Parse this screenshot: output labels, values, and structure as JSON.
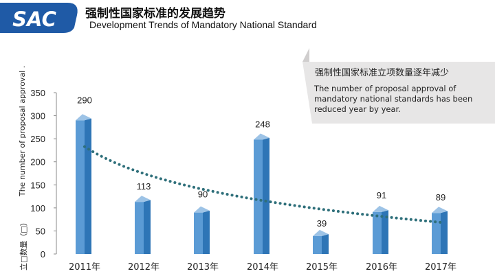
{
  "header": {
    "logo_text": "SAC",
    "title_cn": "强制性国家标准的发展趋势",
    "title_en": "Development Trends of Mandatory National Standard"
  },
  "callout": {
    "text_cn": "强制性国家标准立项数量逐年减少",
    "text_en": "The number of proposal approval of mandatory national standards has been reduced year by year."
  },
  "colors": {
    "logo_blue": "#1f5aa6",
    "bar_front": "#5b9bd5",
    "bar_side": "#2e75b6",
    "bar_top": "#9dc3e6",
    "trendline": "#2e6f7a"
  },
  "chart_data": {
    "type": "bar",
    "categories": [
      "2011年",
      "2012年",
      "2013年",
      "2014年",
      "2015年",
      "2016年",
      "2017年"
    ],
    "values": [
      290,
      113,
      90,
      248,
      39,
      91,
      89
    ],
    "data_labels": [
      "290",
      "113",
      "90",
      "248",
      "39",
      "91",
      "89"
    ],
    "ylabel_en": "The number of proposal approval .",
    "ylabel_cn": "立□数量（□）",
    "ylim": [
      0,
      350
    ],
    "yticks": [
      0,
      50,
      100,
      150,
      200,
      250,
      300,
      350
    ],
    "trendline": {
      "style": "dotted",
      "kind": "logarithmic"
    },
    "grid": false,
    "legend": "none"
  }
}
